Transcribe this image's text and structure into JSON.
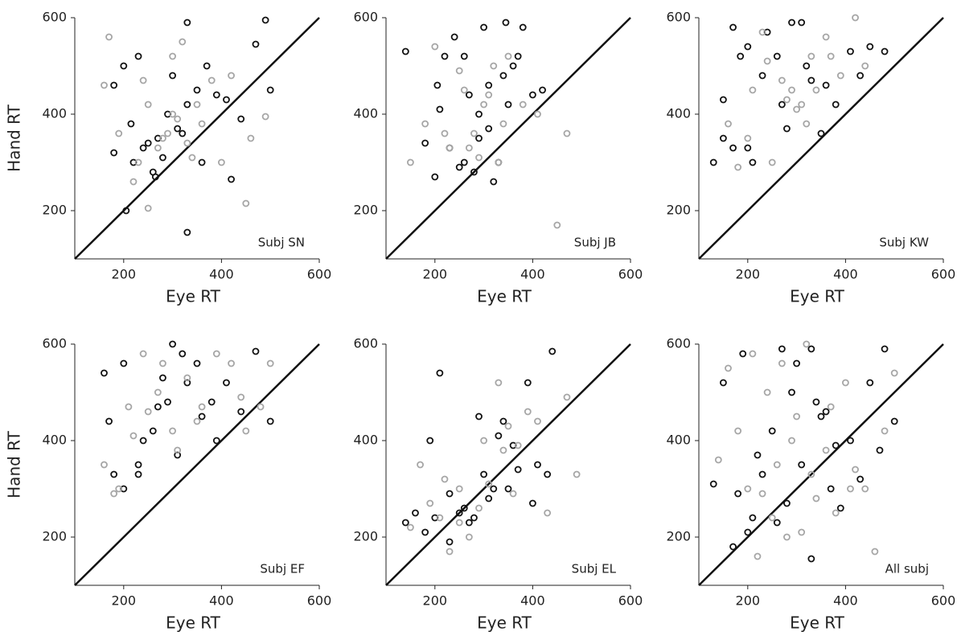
{
  "chart_data": [
    {
      "type": "scatter",
      "xlabel": "Eye RT",
      "ylabel": "Hand RT",
      "annotation": "Subj SN",
      "xlim": [
        100,
        600
      ],
      "ylim": [
        100,
        600
      ],
      "xticks": [
        200,
        400,
        600
      ],
      "yticks": [
        200,
        400,
        600
      ],
      "identity_line": true,
      "series": [
        {
          "color": "#111111",
          "x": [
            205,
            330,
            490,
            330,
            420,
            500,
            470,
            180,
            200,
            220,
            240,
            260,
            270,
            290,
            310,
            330,
            350,
            370,
            390,
            410,
            230,
            280,
            300,
            320,
            250,
            360,
            440,
            180,
            215,
            265
          ],
          "values": [
            200,
            590,
            595,
            155,
            265,
            450,
            545,
            460,
            500,
            300,
            330,
            280,
            350,
            400,
            370,
            420,
            450,
            500,
            440,
            430,
            520,
            310,
            480,
            360,
            340,
            300,
            390,
            320,
            380,
            270
          ]
        },
        {
          "color": "#a6a6a6",
          "x": [
            170,
            450,
            250,
            490,
            160,
            190,
            220,
            250,
            280,
            300,
            320,
            340,
            360,
            380,
            400,
            420,
            460,
            270,
            290,
            310,
            330,
            230,
            350,
            240,
            300
          ],
          "values": [
            560,
            215,
            205,
            395,
            460,
            360,
            260,
            420,
            350,
            400,
            550,
            310,
            380,
            470,
            300,
            480,
            350,
            330,
            360,
            390,
            340,
            300,
            420,
            470,
            520
          ]
        }
      ]
    },
    {
      "type": "scatter",
      "xlabel": "Eye RT",
      "annotation": "Subj JB",
      "xlim": [
        100,
        600
      ],
      "ylim": [
        100,
        600
      ],
      "xticks": [
        200,
        400,
        600
      ],
      "yticks": [
        200,
        400,
        600
      ],
      "identity_line": true,
      "series": [
        {
          "color": "#111111",
          "x": [
            140,
            200,
            220,
            240,
            260,
            280,
            300,
            320,
            340,
            360,
            380,
            400,
            420,
            180,
            210,
            250,
            270,
            290,
            310,
            330,
            350,
            370,
            230,
            290,
            310,
            260,
            205,
            345
          ],
          "values": [
            530,
            270,
            520,
            560,
            300,
            280,
            580,
            260,
            480,
            500,
            580,
            440,
            450,
            340,
            410,
            290,
            440,
            350,
            460,
            300,
            420,
            520,
            330,
            400,
            370,
            520,
            460,
            590
          ]
        },
        {
          "color": "#a6a6a6",
          "x": [
            150,
            180,
            200,
            230,
            260,
            280,
            300,
            330,
            350,
            380,
            410,
            450,
            470,
            250,
            290,
            320,
            340,
            270,
            220,
            310
          ],
          "values": [
            300,
            380,
            540,
            330,
            450,
            360,
            420,
            300,
            520,
            420,
            400,
            170,
            360,
            490,
            310,
            500,
            380,
            330,
            360,
            440
          ]
        }
      ]
    },
    {
      "type": "scatter",
      "xlabel": "Eye RT",
      "annotation": "Subj KW",
      "xlim": [
        100,
        600
      ],
      "ylim": [
        100,
        600
      ],
      "xticks": [
        200,
        400,
        600
      ],
      "yticks": [
        200,
        400,
        600
      ],
      "identity_line": true,
      "series": [
        {
          "color": "#111111",
          "x": [
            130,
            150,
            170,
            200,
            230,
            260,
            290,
            320,
            350,
            380,
            410,
            430,
            450,
            480,
            170,
            210,
            240,
            280,
            310,
            360,
            200,
            270,
            330,
            150,
            185
          ],
          "values": [
            300,
            430,
            580,
            330,
            480,
            520,
            590,
            500,
            360,
            420,
            530,
            480,
            540,
            530,
            330,
            300,
            570,
            370,
            590,
            460,
            540,
            420,
            470,
            350,
            520
          ]
        },
        {
          "color": "#a6a6a6",
          "x": [
            160,
            180,
            210,
            240,
            270,
            300,
            330,
            360,
            390,
            420,
            440,
            250,
            290,
            310,
            200,
            230,
            340,
            280,
            320,
            370
          ],
          "values": [
            380,
            290,
            450,
            510,
            470,
            410,
            520,
            560,
            480,
            600,
            500,
            300,
            450,
            420,
            350,
            570,
            450,
            430,
            380,
            520
          ]
        }
      ]
    },
    {
      "type": "scatter",
      "xlabel": "Eye RT",
      "ylabel": "Hand RT",
      "annotation": "Subj EF",
      "xlim": [
        100,
        600
      ],
      "ylim": [
        100,
        600
      ],
      "xticks": [
        200,
        400,
        600
      ],
      "yticks": [
        200,
        400,
        600
      ],
      "identity_line": true,
      "series": [
        {
          "color": "#111111",
          "x": [
            160,
            180,
            200,
            230,
            260,
            290,
            320,
            350,
            380,
            410,
            440,
            470,
            500,
            200,
            240,
            270,
            300,
            330,
            360,
            390,
            230,
            310,
            170,
            280
          ],
          "values": [
            540,
            330,
            560,
            350,
            420,
            480,
            580,
            560,
            480,
            520,
            460,
            585,
            440,
            300,
            400,
            470,
            600,
            520,
            450,
            400,
            330,
            370,
            440,
            530
          ]
        },
        {
          "color": "#a6a6a6",
          "x": [
            160,
            180,
            210,
            240,
            270,
            300,
            330,
            360,
            390,
            420,
            450,
            480,
            500,
            190,
            250,
            280,
            310,
            350,
            440,
            220
          ],
          "values": [
            350,
            290,
            470,
            580,
            500,
            420,
            530,
            470,
            580,
            560,
            420,
            470,
            560,
            300,
            460,
            560,
            380,
            440,
            490,
            410
          ]
        }
      ]
    },
    {
      "type": "scatter",
      "xlabel": "Eye RT",
      "annotation": "Subj EL",
      "xlim": [
        100,
        600
      ],
      "ylim": [
        100,
        600
      ],
      "xticks": [
        200,
        400,
        600
      ],
      "yticks": [
        200,
        400,
        600
      ],
      "identity_line": true,
      "series": [
        {
          "color": "#111111",
          "x": [
            140,
            160,
            180,
            200,
            210,
            230,
            250,
            270,
            290,
            310,
            330,
            350,
            370,
            390,
            410,
            430,
            440,
            190,
            260,
            300,
            340,
            280,
            320,
            360,
            230,
            400
          ],
          "values": [
            230,
            250,
            210,
            240,
            540,
            290,
            250,
            230,
            450,
            280,
            410,
            300,
            340,
            520,
            350,
            330,
            585,
            400,
            260,
            330,
            440,
            240,
            300,
            390,
            190,
            270
          ]
        },
        {
          "color": "#a6a6a6",
          "x": [
            150,
            170,
            190,
            210,
            230,
            250,
            270,
            290,
            310,
            330,
            350,
            370,
            390,
            410,
            430,
            470,
            490,
            220,
            300,
            340,
            360,
            250
          ],
          "values": [
            220,
            350,
            270,
            240,
            170,
            300,
            200,
            260,
            310,
            520,
            430,
            390,
            460,
            440,
            250,
            490,
            330,
            320,
            400,
            380,
            290,
            230
          ]
        }
      ]
    },
    {
      "type": "scatter",
      "xlabel": "Eye RT",
      "annotation": "All subj",
      "xlim": [
        100,
        600
      ],
      "ylim": [
        100,
        600
      ],
      "xticks": [
        200,
        400,
        600
      ],
      "yticks": [
        200,
        400,
        600
      ],
      "identity_line": true,
      "series": [
        {
          "color": "#111111",
          "x": [
            130,
            150,
            170,
            190,
            210,
            230,
            250,
            270,
            290,
            310,
            330,
            350,
            370,
            390,
            410,
            430,
            450,
            480,
            500,
            180,
            220,
            260,
            300,
            340,
            380,
            200,
            280,
            360,
            330,
            470
          ],
          "values": [
            310,
            520,
            180,
            580,
            240,
            330,
            420,
            590,
            500,
            350,
            155,
            450,
            300,
            260,
            400,
            320,
            520,
            590,
            440,
            290,
            370,
            230,
            560,
            480,
            390,
            210,
            270,
            460,
            590,
            380
          ]
        },
        {
          "color": "#a6a6a6",
          "x": [
            140,
            160,
            180,
            200,
            220,
            240,
            260,
            280,
            300,
            320,
            340,
            360,
            380,
            400,
            420,
            440,
            460,
            480,
            500,
            210,
            250,
            290,
            330,
            370,
            410,
            270,
            230,
            310
          ],
          "values": [
            360,
            550,
            420,
            300,
            160,
            500,
            350,
            200,
            450,
            600,
            280,
            380,
            250,
            520,
            340,
            300,
            170,
            420,
            540,
            580,
            240,
            400,
            330,
            470,
            300,
            560,
            290,
            210
          ]
        }
      ]
    }
  ]
}
